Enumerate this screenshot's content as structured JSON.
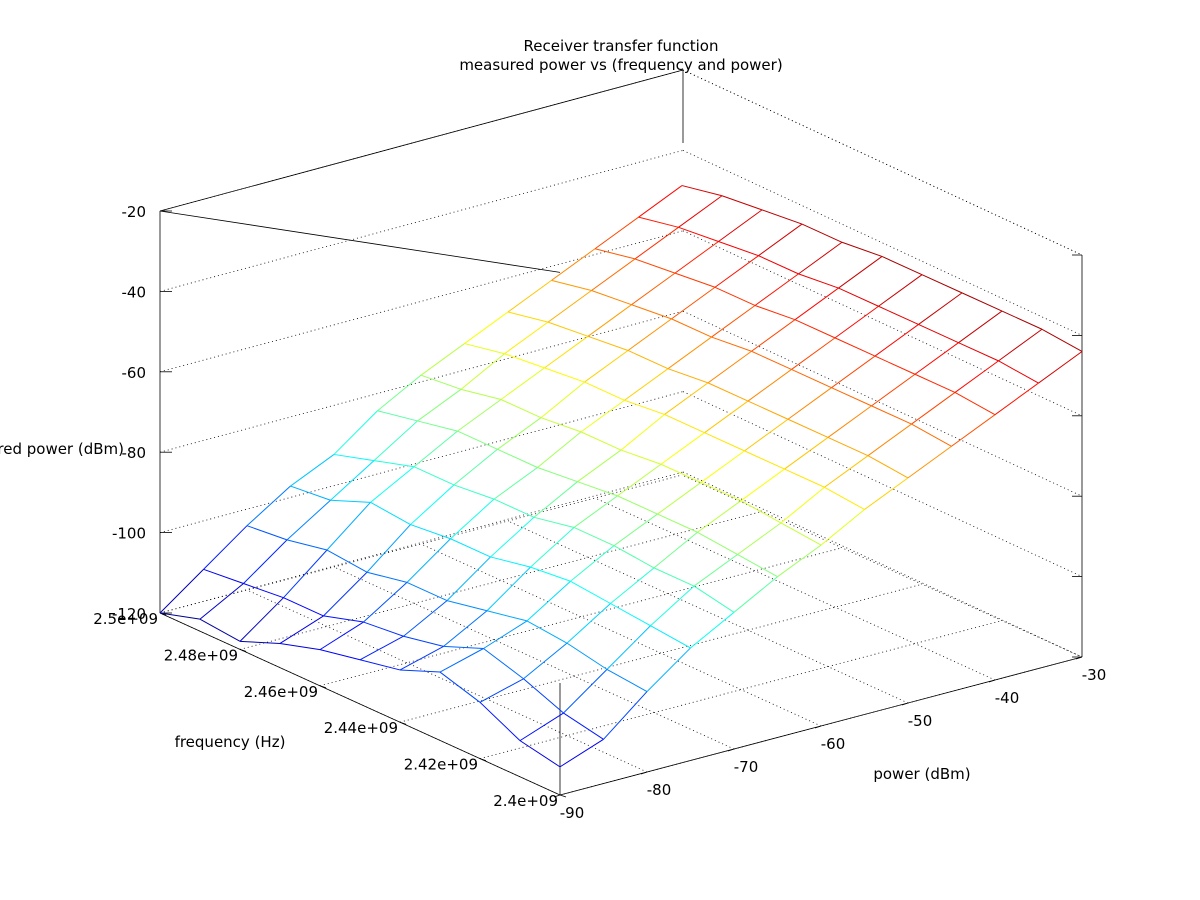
{
  "chart_data": {
    "type": "surface",
    "title": "Receiver transfer function",
    "subtitle": "measured power vs (frequency and power)",
    "xlabel": "power (dBm)",
    "ylabel": "frequency (Hz)",
    "zlabel": "measured power (dBm)",
    "x_ticks": [
      "-90",
      "-80",
      "-70",
      "-60",
      "-50",
      "-40",
      "-30"
    ],
    "y_ticks": [
      "2.4e+09",
      "2.42e+09",
      "2.44e+09",
      "2.46e+09",
      "2.48e+09",
      "2.5e+09"
    ],
    "z_ticks": [
      "-120",
      "-100",
      "-80",
      "-60",
      "-40",
      "-20"
    ],
    "x_range": [
      -90,
      -30
    ],
    "y_range": [
      2400000000,
      2500000000
    ],
    "z_range": [
      -120,
      -20
    ],
    "grid": true,
    "colormap": "jet",
    "power_dBm": [
      -90,
      -85,
      -80,
      -75,
      -70,
      -65,
      -60,
      -55,
      -50,
      -45,
      -40,
      -35,
      -30
    ],
    "frequency_Hz": [
      2400000000,
      2410000000,
      2420000000,
      2430000000,
      2440000000,
      2450000000,
      2460000000,
      2470000000,
      2480000000,
      2490000000,
      2500000000
    ],
    "measured_dBm": [
      [
        -113,
        -109,
        -100,
        -92,
        -86,
        -80,
        -75,
        -69,
        -64,
        -59,
        -54,
        -49,
        -44
      ],
      [
        -111,
        -107,
        -99,
        -91,
        -84,
        -79,
        -74,
        -68,
        -63,
        -58,
        -53,
        -48,
        -43
      ],
      [
        -106,
        -103,
        -97,
        -90,
        -84,
        -78,
        -73,
        -68,
        -63,
        -58,
        -53,
        -48,
        -43
      ],
      [
        -103,
        -100,
        -96,
        -89,
        -83,
        -78,
        -73,
        -68,
        -63,
        -58,
        -53,
        -48,
        -43
      ],
      [
        -107,
        -104,
        -98,
        -90,
        -83,
        -78,
        -73,
        -68,
        -63,
        -58,
        -53,
        -48,
        -43
      ],
      [
        -109,
        -106,
        -100,
        -92,
        -85,
        -79,
        -74,
        -68,
        -63,
        -58,
        -53,
        -48,
        -43
      ],
      [
        -111,
        -107,
        -100,
        -92,
        -85,
        -80,
        -74,
        -69,
        -64,
        -59,
        -54,
        -49,
        -44
      ],
      [
        -114,
        -110,
        -102,
        -93,
        -86,
        -80,
        -75,
        -69,
        -64,
        -59,
        -54,
        -49,
        -44
      ],
      [
        -118,
        -110,
        -101,
        -92,
        -86,
        -80,
        -75,
        -70,
        -65,
        -60,
        -55,
        -50,
        -45
      ],
      [
        -117,
        -111,
        -103,
        -96,
        -89,
        -82,
        -77,
        -71,
        -66,
        -61,
        -56,
        -51,
        -46
      ],
      [
        -120,
        -112,
        -104,
        -97,
        -92,
        -84,
        -78,
        -73,
        -68,
        -63,
        -58,
        -53,
        -48
      ]
    ]
  }
}
